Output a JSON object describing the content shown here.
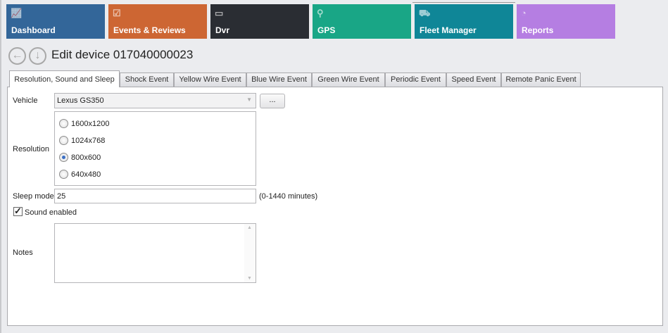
{
  "nav": {
    "tiles": [
      {
        "label": "Dashboard",
        "color": "#336699",
        "icon": "chart-line-icon"
      },
      {
        "label": "Events & Reviews",
        "color": "#cd6633",
        "icon": "clipboard-check-icon"
      },
      {
        "label": "Dvr",
        "color": "#2a2d33",
        "icon": "dvr-merge-icon"
      },
      {
        "label": "GPS",
        "color": "#19a686",
        "icon": "map-pin-icon"
      },
      {
        "label": "Fleet Manager",
        "color": "#0f8697",
        "icon": "cars-icon",
        "selected": true
      },
      {
        "label": "Reports",
        "color": "#b57ee2",
        "icon": "pie-chart-icon"
      }
    ]
  },
  "header": {
    "title": "Edit device 017040000023"
  },
  "tabs": [
    "Resolution, Sound and Sleep",
    "Shock Event",
    "Yellow Wire Event",
    "Blue Wire Event",
    "Green Wire Event",
    "Periodic Event",
    "Speed Event",
    "Remote Panic Event"
  ],
  "active_tab": 0,
  "form": {
    "vehicle_label": "Vehicle",
    "vehicle_value": "Lexus GS350",
    "browse_label": "...",
    "resolution_label": "Resolution",
    "resolutions": [
      "1600x1200",
      "1024x768",
      "800x600",
      "640x480"
    ],
    "selected_resolution": "800x600",
    "sleep_label": "Sleep mode",
    "sleep_value": "25",
    "sleep_hint": "(0-1440 minutes)",
    "sound_label": "Sound enabled",
    "sound_checked": true,
    "notes_label": "Notes",
    "notes_value": ""
  }
}
